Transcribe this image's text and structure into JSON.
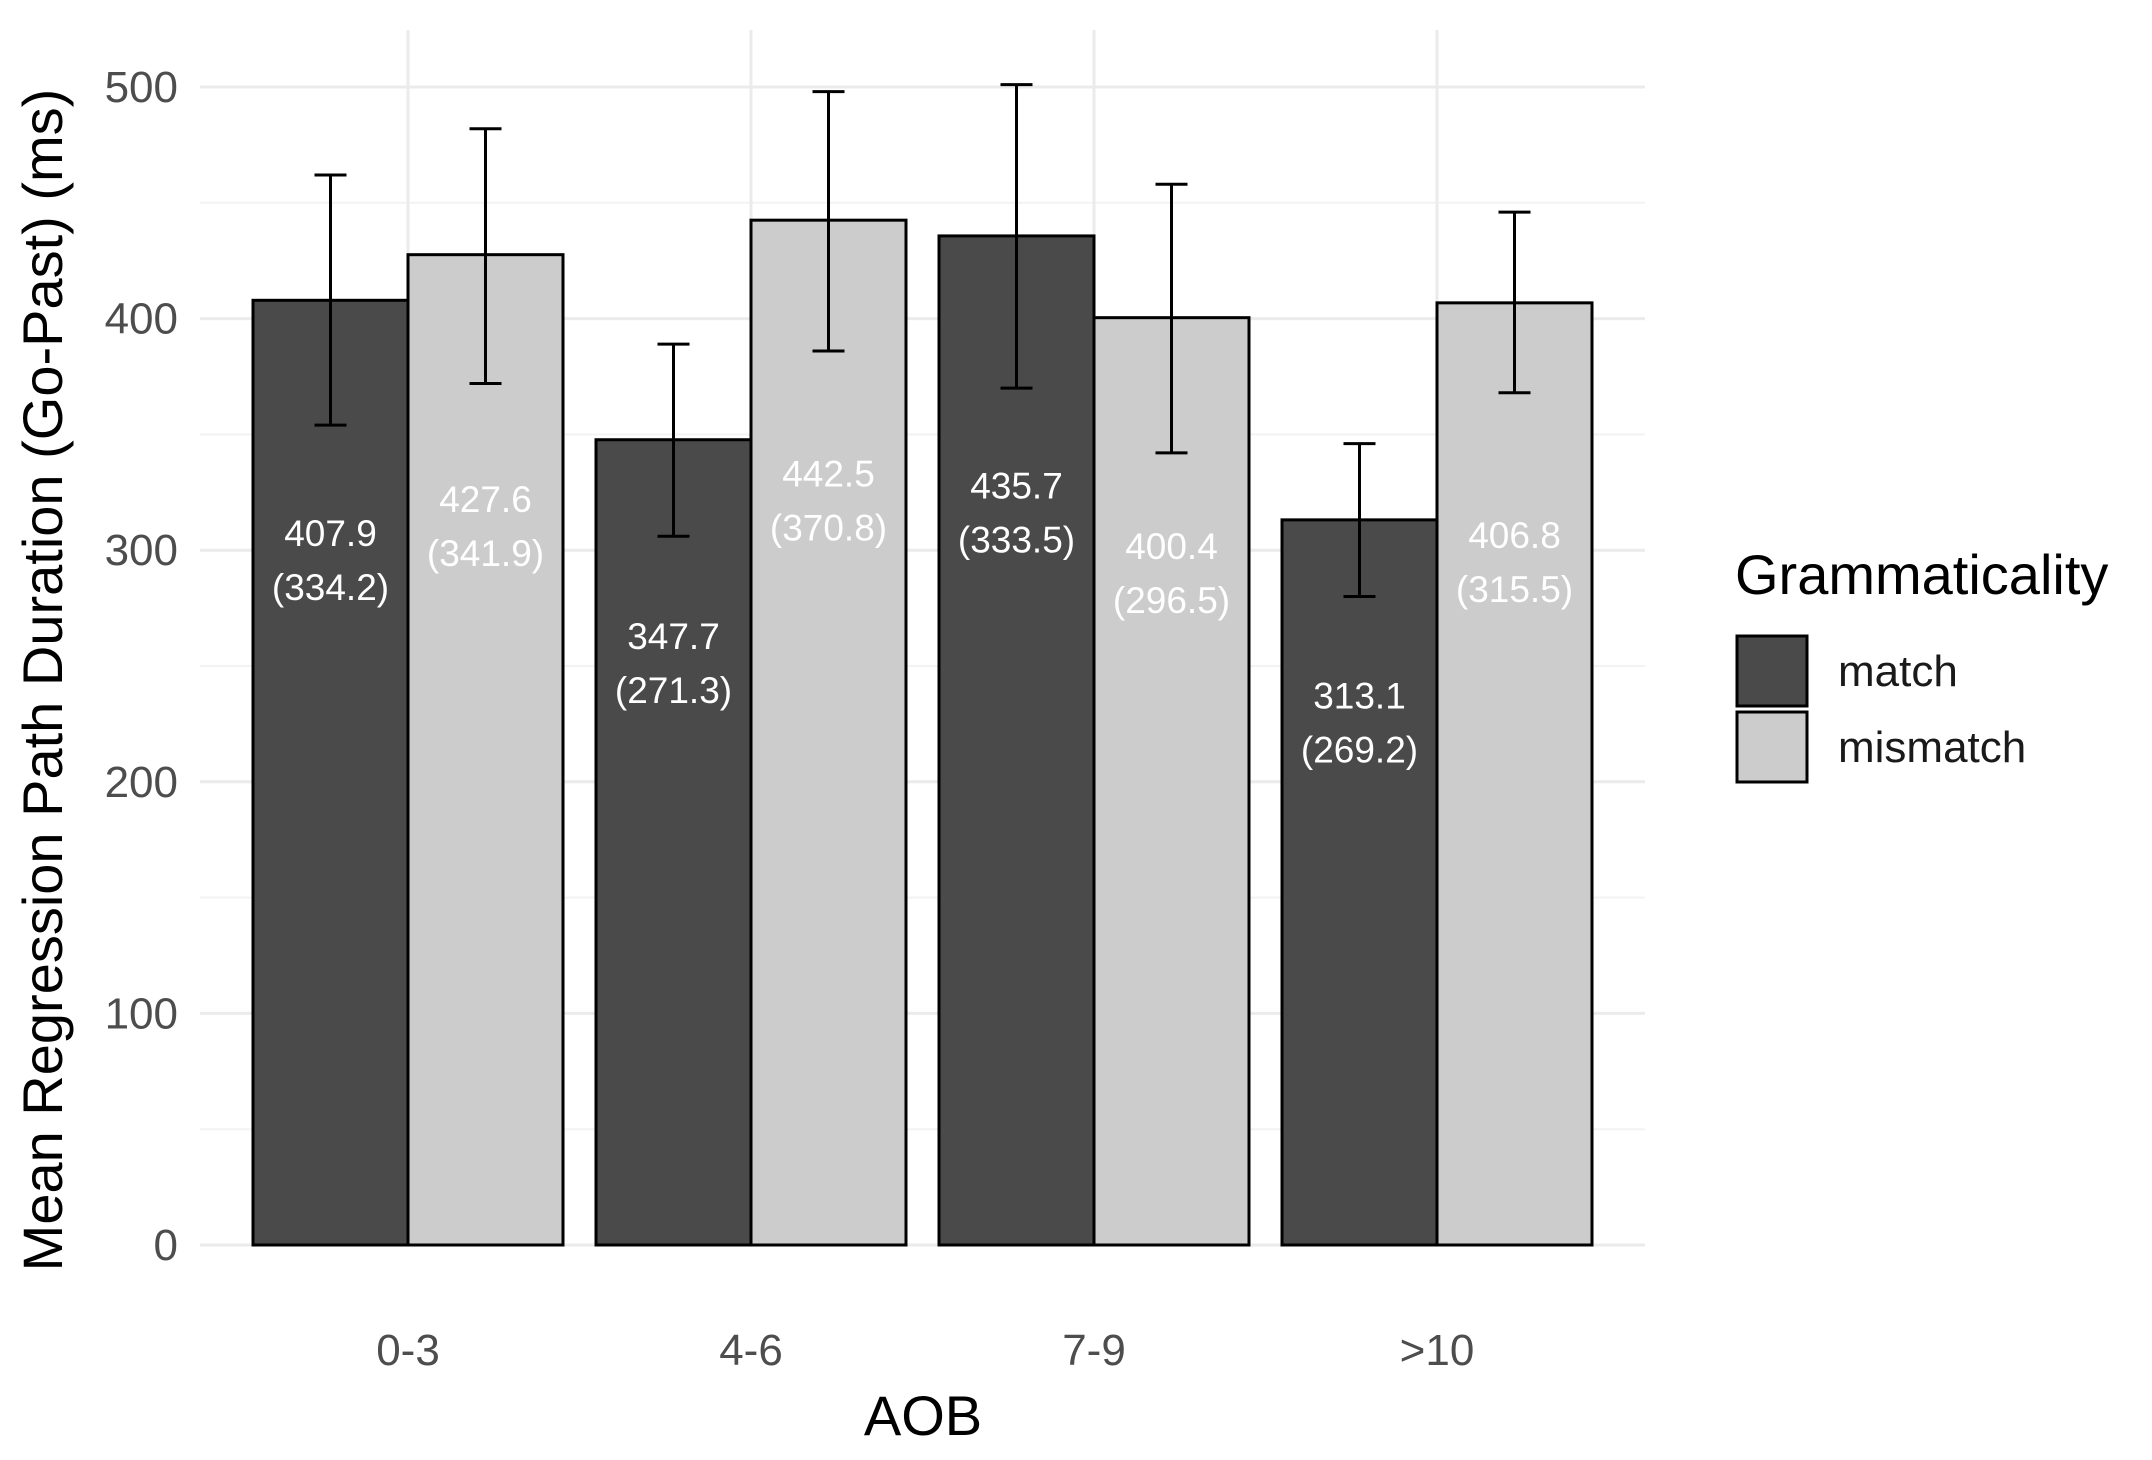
{
  "chart_data": {
    "type": "bar",
    "title": "",
    "xlabel": "AOB",
    "ylabel": "Mean Regression Path Duration (Go-Past) (ms)",
    "ylim": [
      0,
      500
    ],
    "yticks": [
      0,
      100,
      200,
      300,
      400,
      500
    ],
    "grid": true,
    "categories": [
      "0-3",
      "4-6",
      "7-9",
      ">10"
    ],
    "series": [
      {
        "name": "match",
        "color": "#4a4a4a",
        "label_color": "#ffffff",
        "values": [
          407.9,
          347.7,
          435.7,
          313.1
        ],
        "sd": [
          "(334.2)",
          "(271.3)",
          "(333.5)",
          "(269.2)"
        ],
        "value_labels": [
          "407.9",
          "347.7",
          "435.7",
          "313.1"
        ],
        "error_low": [
          354,
          306,
          370,
          280
        ],
        "error_high": [
          462,
          389,
          501,
          346
        ]
      },
      {
        "name": "mismatch",
        "color": "#cccccc",
        "label_color": "#ffffff",
        "values": [
          427.6,
          442.5,
          400.4,
          406.8
        ],
        "sd": [
          "(341.9)",
          "(370.8)",
          "(296.5)",
          "(315.5)"
        ],
        "value_labels": [
          "427.6",
          "442.5",
          "400.4",
          "406.8"
        ],
        "error_low": [
          372,
          386,
          342,
          368
        ],
        "error_high": [
          482,
          498,
          458,
          446
        ]
      }
    ],
    "legend": {
      "title": "Grammaticality",
      "position": "right",
      "items": [
        "match",
        "mismatch"
      ]
    }
  }
}
